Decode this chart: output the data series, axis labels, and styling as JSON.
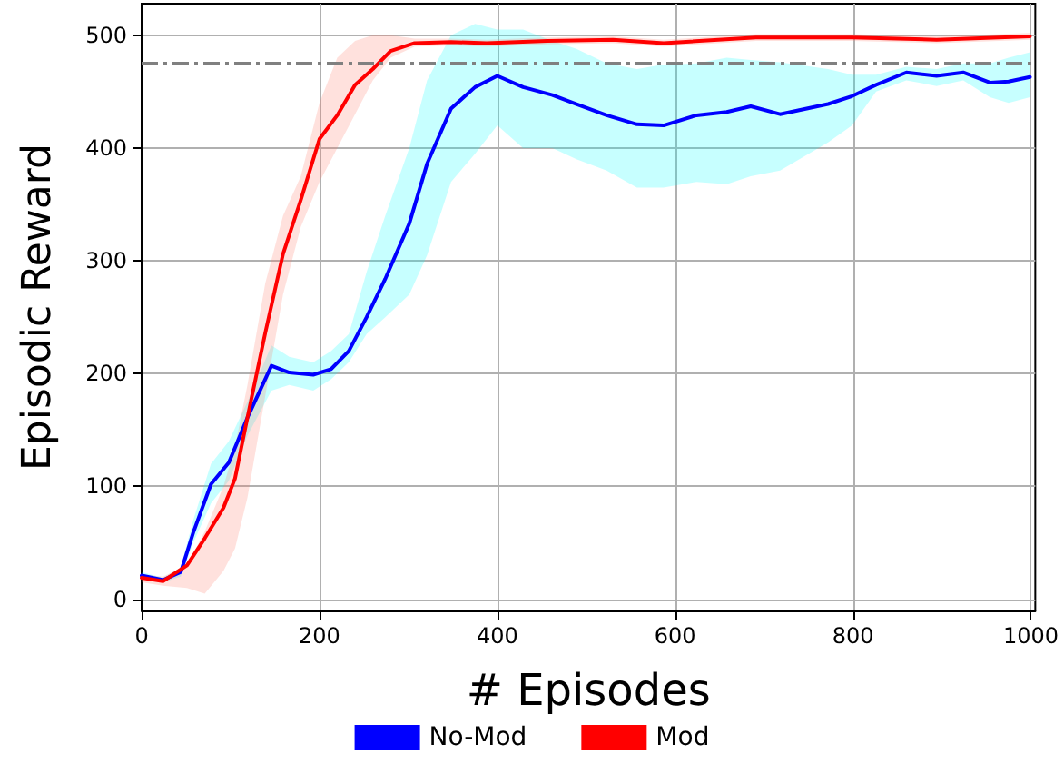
{
  "chart_data": {
    "type": "line",
    "xlabel": "# Episodes",
    "ylabel": "Episodic Reward",
    "xlim": [
      0,
      1005
    ],
    "ylim": [
      -10,
      528
    ],
    "xticks": [
      0,
      200,
      400,
      600,
      800,
      1000
    ],
    "yticks": [
      0,
      100,
      200,
      300,
      400,
      500
    ],
    "grid": true,
    "legend": "bottom",
    "line_style": "solid",
    "ref_lines": [
      {
        "axis": "y",
        "value": 475,
        "color": "#808080",
        "line_style": "dashed"
      }
    ],
    "series": [
      {
        "name": "No-Mod",
        "color": "#0000ff",
        "x": [
          0,
          24,
          44,
          58,
          78,
          98,
          119,
          146,
          166,
          193,
          213,
          233,
          253,
          274,
          301,
          321,
          348,
          375,
          400,
          429,
          462,
          489,
          523,
          557,
          587,
          624,
          658,
          685,
          718,
          772,
          799,
          826,
          860,
          894,
          924,
          954,
          975,
          999
        ],
        "values": [
          21,
          17,
          24,
          59,
          102,
          121,
          161,
          207,
          201,
          199,
          204,
          220,
          250,
          284,
          333,
          386,
          435,
          454,
          464,
          454,
          447,
          439,
          429,
          421,
          420,
          429,
          432,
          437,
          430,
          439,
          446,
          456,
          467,
          464,
          467,
          458,
          459,
          463
        ],
        "lower": [
          18,
          15,
          20,
          50,
          85,
          105,
          145,
          185,
          190,
          185,
          195,
          210,
          235,
          250,
          270,
          305,
          370,
          395,
          420,
          400,
          400,
          390,
          380,
          365,
          365,
          370,
          368,
          375,
          380,
          405,
          420,
          450,
          460,
          455,
          460,
          445,
          440,
          445
        ],
        "upper": [
          24,
          19,
          28,
          70,
          120,
          140,
          175,
          225,
          215,
          210,
          220,
          235,
          290,
          340,
          400,
          460,
          500,
          510,
          505,
          505,
          495,
          488,
          475,
          470,
          474,
          475,
          480,
          478,
          476,
          470,
          465,
          465,
          472,
          470,
          475,
          475,
          480,
          485
        ]
      },
      {
        "name": "Mod",
        "color": "#ff0000",
        "x": [
          0,
          24,
          51,
          71,
          92,
          105,
          119,
          139,
          159,
          179,
          200,
          220,
          240,
          260,
          280,
          307,
          348,
          388,
          456,
          530,
          587,
          691,
          799,
          894,
          999
        ],
        "values": [
          19,
          16,
          30,
          54,
          81,
          107,
          161,
          236,
          306,
          354,
          408,
          429,
          456,
          470,
          486,
          493,
          494,
          493,
          495,
          496,
          493,
          498,
          498,
          496,
          499
        ],
        "lower": [
          15,
          12,
          10,
          5,
          25,
          45,
          90,
          180,
          270,
          330,
          370,
          400,
          430,
          460,
          480,
          490,
          491,
          490,
          492,
          493,
          490,
          495,
          495,
          493,
          496
        ],
        "upper": [
          22,
          20,
          30,
          60,
          100,
          135,
          190,
          280,
          340,
          375,
          440,
          480,
          495,
          500,
          500,
          497,
          497,
          496,
          498,
          499,
          496,
          501,
          501,
          499,
          502
        ]
      }
    ]
  }
}
